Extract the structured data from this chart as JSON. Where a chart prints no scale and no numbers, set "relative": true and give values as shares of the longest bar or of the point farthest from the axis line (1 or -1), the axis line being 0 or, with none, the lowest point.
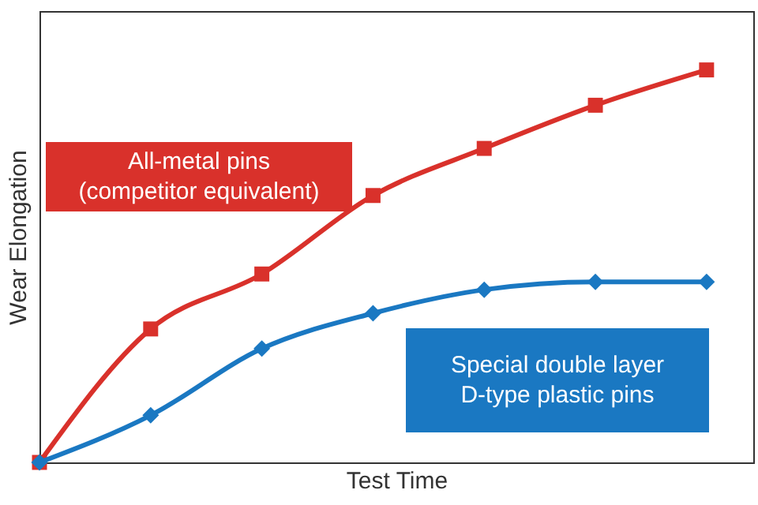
{
  "chart_data": {
    "type": "line",
    "relative": true,
    "xlabel": "Test Time",
    "ylabel": "Wear Elongation",
    "categories": [
      null,
      null,
      null,
      null,
      null,
      null,
      null
    ],
    "series": [
      {
        "name": "All-metal pins (competitor equivalent)",
        "color": "#d9312b",
        "marker": "square",
        "values": [
          0,
          0.34,
          0.48,
          0.68,
          0.8,
          0.91,
          1
        ]
      },
      {
        "name": "Special double layer D-type plastic pins",
        "color": "#1a78c2",
        "marker": "diamond",
        "values": [
          0,
          0.12,
          0.29,
          0.38,
          0.44,
          0.46,
          0.46
        ]
      }
    ]
  }
}
